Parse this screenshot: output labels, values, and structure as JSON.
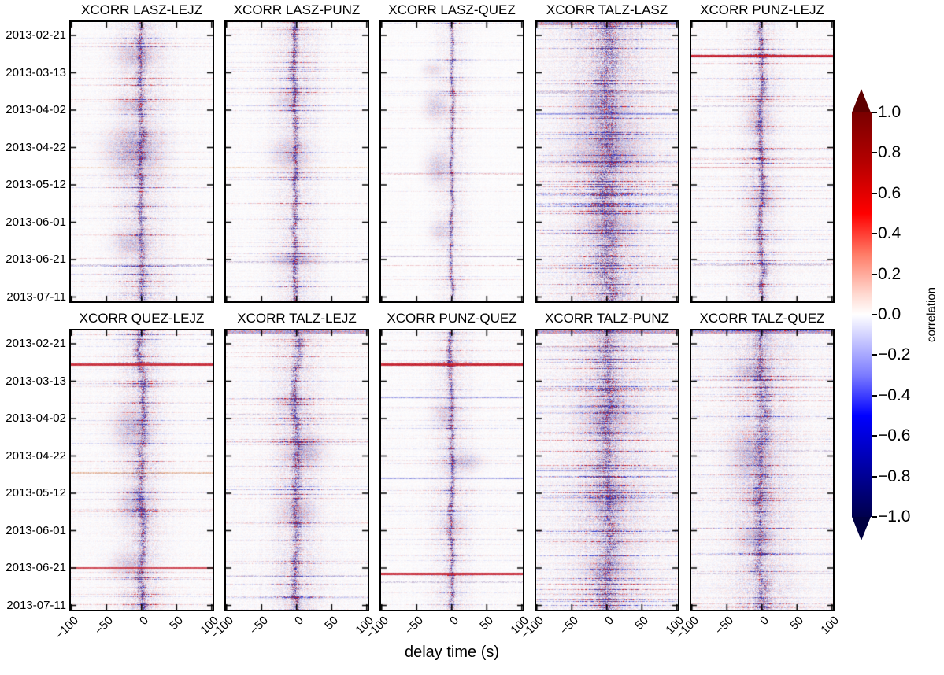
{
  "chart_data": {
    "type": "heatmap",
    "xlabel": "delay time (s)",
    "x_range": [
      -100,
      100
    ],
    "value_range": [
      -1.0,
      1.0
    ],
    "xticklabels": [
      "−100",
      "−50",
      "0",
      "50",
      "100"
    ],
    "ylabels": [
      "2013-02-21",
      "2013-03-13",
      "2013-04-02",
      "2013-04-22",
      "2013-05-12",
      "2013-06-01",
      "2013-06-21",
      "2013-07-11"
    ],
    "colorbar": {
      "label": "correlation",
      "ticks": [
        "1.0",
        "0.8",
        "0.6",
        "0.4",
        "0.2",
        "0.0",
        "−0.2",
        "−0.4",
        "−0.6",
        "−0.8",
        "−1.0"
      ],
      "cmap": "seismic",
      "over_color": "#5e0000",
      "under_color": "#000041"
    },
    "palette": {
      "red": "#c01020",
      "blue": "#2830c8",
      "orange": "#d2691e",
      "purple": "#5a3a8a"
    },
    "panels": [
      {
        "title": "XCORR LASZ-LEJZ",
        "seed": 11,
        "bg": 0.065,
        "stripe_density": 0.11,
        "halo": {
          "w": 30,
          "s": 0.25
        },
        "band": {
          "cx": 0.495,
          "w": 5,
          "s": 0.72,
          "wiggle": 0.9
        },
        "blobs": [
          [
            0.44,
            0.46,
            30,
            26,
            0.45
          ],
          [
            0.46,
            0.12,
            22,
            13,
            0.3
          ],
          [
            0.42,
            0.79,
            20,
            14,
            0.28
          ],
          [
            0.43,
            0.3,
            18,
            10,
            0.22
          ]
        ],
        "events": [
          [
            0.085,
            "red",
            0.25,
            1
          ],
          [
            0.52,
            "orange",
            0.3,
            2
          ],
          [
            0.845,
            "red",
            0.22,
            1
          ],
          [
            0.87,
            "purple",
            0.35,
            2
          ]
        ],
        "top_dark": 0
      },
      {
        "title": "XCORR LASZ-PUNZ",
        "seed": 22,
        "bg": 0.06,
        "stripe_density": 0.11,
        "halo": {
          "w": 26,
          "s": 0.22
        },
        "band": {
          "cx": 0.49,
          "w": 4,
          "s": 0.75,
          "wiggle": 0.8
        },
        "blobs": [
          [
            0.45,
            0.47,
            20,
            18,
            0.3
          ],
          [
            0.48,
            0.85,
            24,
            9,
            0.3
          ],
          [
            0.44,
            0.28,
            16,
            10,
            0.2
          ]
        ],
        "events": [
          [
            0.08,
            "blue",
            0.15,
            1
          ],
          [
            0.52,
            "orange",
            0.35,
            2
          ],
          [
            0.86,
            "purple",
            0.3,
            2
          ]
        ],
        "top_dark": 0
      },
      {
        "title": "XCORR LASZ-QUEZ",
        "seed": 33,
        "bg": 0.045,
        "stripe_density": 0.09,
        "halo": {
          "w": 20,
          "s": 0.15
        },
        "band": {
          "cx": 0.497,
          "w": 2.5,
          "s": 0.92,
          "wiggle": 0.5
        },
        "blobs": [
          [
            0.38,
            0.3,
            13,
            16,
            0.28
          ],
          [
            0.4,
            0.52,
            15,
            20,
            0.3
          ],
          [
            0.42,
            0.75,
            13,
            12,
            0.22
          ],
          [
            0.36,
            0.17,
            12,
            8,
            0.2
          ]
        ],
        "events": [
          [
            0.085,
            "blue",
            0.3,
            1
          ],
          [
            0.545,
            "red",
            0.28,
            2
          ],
          [
            0.84,
            "purple",
            0.4,
            2
          ],
          [
            0.87,
            "red",
            0.3,
            1
          ]
        ],
        "top_dark": 0
      },
      {
        "title": "XCORR TALZ-LASZ",
        "seed": 44,
        "bg": 0.13,
        "stripe_density": 0.16,
        "halo": {
          "w": 40,
          "s": 0.3
        },
        "band": {
          "cx": 0.505,
          "w": 13,
          "s": 0.5,
          "wiggle": 1.5
        },
        "blobs": [
          [
            0.5,
            0.45,
            42,
            28,
            0.3
          ],
          [
            0.46,
            0.3,
            30,
            18,
            0.25
          ],
          [
            0.52,
            0.72,
            30,
            22,
            0.25
          ]
        ],
        "events": [
          [
            0.06,
            "red",
            0.18,
            1
          ],
          [
            0.25,
            "purple",
            0.35,
            3
          ],
          [
            0.33,
            "blue",
            0.5,
            2
          ],
          [
            0.88,
            "purple",
            0.3,
            2
          ]
        ],
        "top_dark": 1
      },
      {
        "title": "XCORR PUNZ-LEJZ",
        "seed": 55,
        "bg": 0.075,
        "stripe_density": 0.14,
        "halo": {
          "w": 24,
          "s": 0.22
        },
        "band": {
          "cx": 0.49,
          "w": 4,
          "s": 0.85,
          "wiggle": 0.8
        },
        "blobs": [
          [
            0.47,
            0.35,
            15,
            18,
            0.25
          ],
          [
            0.5,
            0.63,
            16,
            16,
            0.22
          ]
        ],
        "events": [
          [
            0.12,
            "red",
            0.95,
            3
          ],
          [
            0.3,
            "purple",
            0.3,
            2
          ],
          [
            0.52,
            "red",
            0.4,
            2
          ],
          [
            0.56,
            "orange",
            0.3,
            1
          ],
          [
            0.87,
            "purple",
            0.35,
            2
          ]
        ],
        "top_dark": 0
      },
      {
        "title": "XCORR QUEZ-LEJZ",
        "seed": 66,
        "bg": 0.07,
        "stripe_density": 0.13,
        "halo": {
          "w": 26,
          "s": 0.24
        },
        "band": {
          "cx": 0.5,
          "w": 5,
          "s": 0.75,
          "wiggle": 1.0
        },
        "blobs": [
          [
            0.42,
            0.35,
            20,
            24,
            0.3
          ],
          [
            0.45,
            0.62,
            18,
            20,
            0.28
          ],
          [
            0.4,
            0.84,
            20,
            13,
            0.28
          ]
        ],
        "events": [
          [
            0.055,
            "blue",
            0.2,
            1
          ],
          [
            0.12,
            "red",
            0.9,
            3
          ],
          [
            0.51,
            "orange",
            0.5,
            2
          ],
          [
            0.85,
            "red",
            0.8,
            2
          ]
        ],
        "top_dark": 0
      },
      {
        "title": "XCORR TALZ-LEJZ",
        "seed": 77,
        "bg": 0.08,
        "stripe_density": 0.12,
        "halo": {
          "w": 28,
          "s": 0.25
        },
        "band": {
          "cx": 0.5,
          "w": 5,
          "s": 0.7,
          "wiggle": 1.0
        },
        "blobs": [
          [
            0.55,
            0.43,
            22,
            17,
            0.38
          ],
          [
            0.5,
            0.65,
            20,
            14,
            0.28
          ],
          [
            0.46,
            0.26,
            16,
            11,
            0.22
          ]
        ],
        "events": [
          [
            0.08,
            "red",
            0.2,
            1
          ],
          [
            0.3,
            "purple",
            0.3,
            2
          ],
          [
            0.88,
            "purple",
            0.3,
            2
          ]
        ],
        "top_dark": 1
      },
      {
        "title": "XCORR PUNZ-QUEZ",
        "seed": 88,
        "bg": 0.06,
        "stripe_density": 0.12,
        "halo": {
          "w": 22,
          "s": 0.2
        },
        "band": {
          "cx": 0.495,
          "w": 3,
          "s": 0.88,
          "wiggle": 0.6
        },
        "blobs": [
          [
            0.58,
            0.47,
            20,
            11,
            0.3
          ],
          [
            0.45,
            0.3,
            14,
            15,
            0.22
          ],
          [
            0.5,
            0.7,
            14,
            12,
            0.2
          ]
        ],
        "events": [
          [
            0.12,
            "red",
            0.95,
            3
          ],
          [
            0.24,
            "blue",
            0.5,
            2
          ],
          [
            0.53,
            "blue",
            0.55,
            2
          ],
          [
            0.87,
            "red",
            0.9,
            3
          ],
          [
            0.9,
            "purple",
            0.35,
            2
          ]
        ],
        "top_dark": 0
      },
      {
        "title": "XCORR TALZ-PUNZ",
        "seed": 99,
        "bg": 0.12,
        "stripe_density": 0.15,
        "halo": {
          "w": 38,
          "s": 0.28
        },
        "band": {
          "cx": 0.505,
          "w": 11,
          "s": 0.5,
          "wiggle": 1.4
        },
        "blobs": [
          [
            0.5,
            0.3,
            30,
            22,
            0.28
          ],
          [
            0.52,
            0.6,
            28,
            18,
            0.26
          ],
          [
            0.5,
            0.85,
            26,
            13,
            0.26
          ]
        ],
        "events": [
          [
            0.06,
            "purple",
            0.3,
            2
          ],
          [
            0.5,
            "blue",
            0.55,
            2
          ],
          [
            0.75,
            "purple",
            0.3,
            2
          ]
        ],
        "top_dark": 1
      },
      {
        "title": "XCORR TALZ-QUEZ",
        "seed": 110,
        "bg": 0.11,
        "stripe_density": 0.14,
        "halo": {
          "w": 34,
          "s": 0.28
        },
        "band": {
          "cx": 0.5,
          "w": 8,
          "s": 0.55,
          "wiggle": 1.2
        },
        "blobs": [
          [
            0.42,
            0.45,
            22,
            28,
            0.32
          ],
          [
            0.45,
            0.74,
            20,
            14,
            0.28
          ],
          [
            0.42,
            0.15,
            18,
            11,
            0.28
          ],
          [
            0.48,
            0.6,
            18,
            12,
            0.24
          ]
        ],
        "events": [
          [
            0.055,
            "blue",
            0.3,
            1
          ],
          [
            0.43,
            "purple",
            0.3,
            2
          ],
          [
            0.87,
            "purple",
            0.3,
            2
          ],
          [
            0.92,
            "blue",
            0.35,
            1
          ]
        ],
        "top_dark": 1
      }
    ]
  }
}
